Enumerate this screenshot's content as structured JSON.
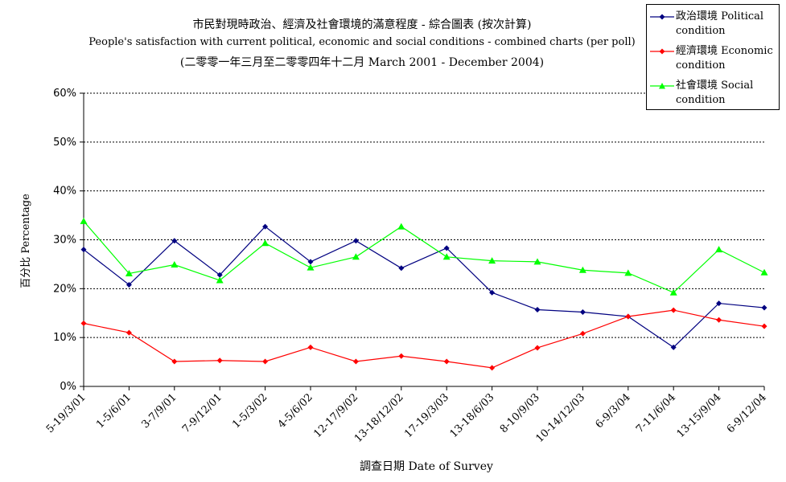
{
  "chart_data": {
    "type": "line",
    "title_zh": "市民對現時政治、經濟及社會環境的滿意程度 - 綜合圖表 (按次計算)",
    "title_en": "People's satisfaction with current political, economic and social conditions - combined charts  (per poll)",
    "subtitle": "(二零零一年三月至二零零四年十二月 March 2001 - December 2004)",
    "xlabel": "調查日期 Date of Survey",
    "ylabel": "百分比 Percentage",
    "ylim": [
      0,
      60
    ],
    "yticks": [
      "0%",
      "10%",
      "20%",
      "30%",
      "40%",
      "50%",
      "60%"
    ],
    "ytick_values": [
      0,
      10,
      20,
      30,
      40,
      50,
      60
    ],
    "grid": "horizontal-dashed",
    "legend_position": "top-right",
    "categories": [
      "5-19/3/01",
      "1-5/6/01",
      "3-7/9/01",
      "7-9/12/01",
      "1-5/3/02",
      "4-5/6/02",
      "12-17/9/02",
      "13-18/12/02",
      "17-19/3/03",
      "13-18/6/03",
      "8-10/9/03",
      "10-14/12/03",
      "6-9/3/04",
      "7-11/6/04",
      "13-15/9/04",
      "6-9/12/04"
    ],
    "series": [
      {
        "name_zh": "政治環境",
        "name_en": "Political condition",
        "color": "#000080",
        "marker": "diamond",
        "values": [
          28.0,
          20.8,
          29.8,
          22.8,
          32.7,
          25.5,
          29.8,
          24.2,
          28.3,
          19.2,
          15.7,
          15.2,
          14.3,
          8.0,
          17.0,
          16.1
        ]
      },
      {
        "name_zh": "經濟環境",
        "name_en": "Economic condition",
        "color": "#ff0000",
        "marker": "diamond",
        "values": [
          12.9,
          11.0,
          5.1,
          5.3,
          5.1,
          8.0,
          5.1,
          6.2,
          5.1,
          3.8,
          7.9,
          10.8,
          14.3,
          15.6,
          13.6,
          12.3
        ]
      },
      {
        "name_zh": "社會環境",
        "name_en": "Social condition",
        "color": "#00ff00",
        "marker": "triangle",
        "values": [
          33.8,
          23.1,
          24.9,
          21.7,
          29.3,
          24.3,
          26.5,
          32.7,
          26.5,
          25.7,
          25.5,
          23.8,
          23.2,
          19.2,
          28.0,
          23.3
        ]
      }
    ]
  }
}
